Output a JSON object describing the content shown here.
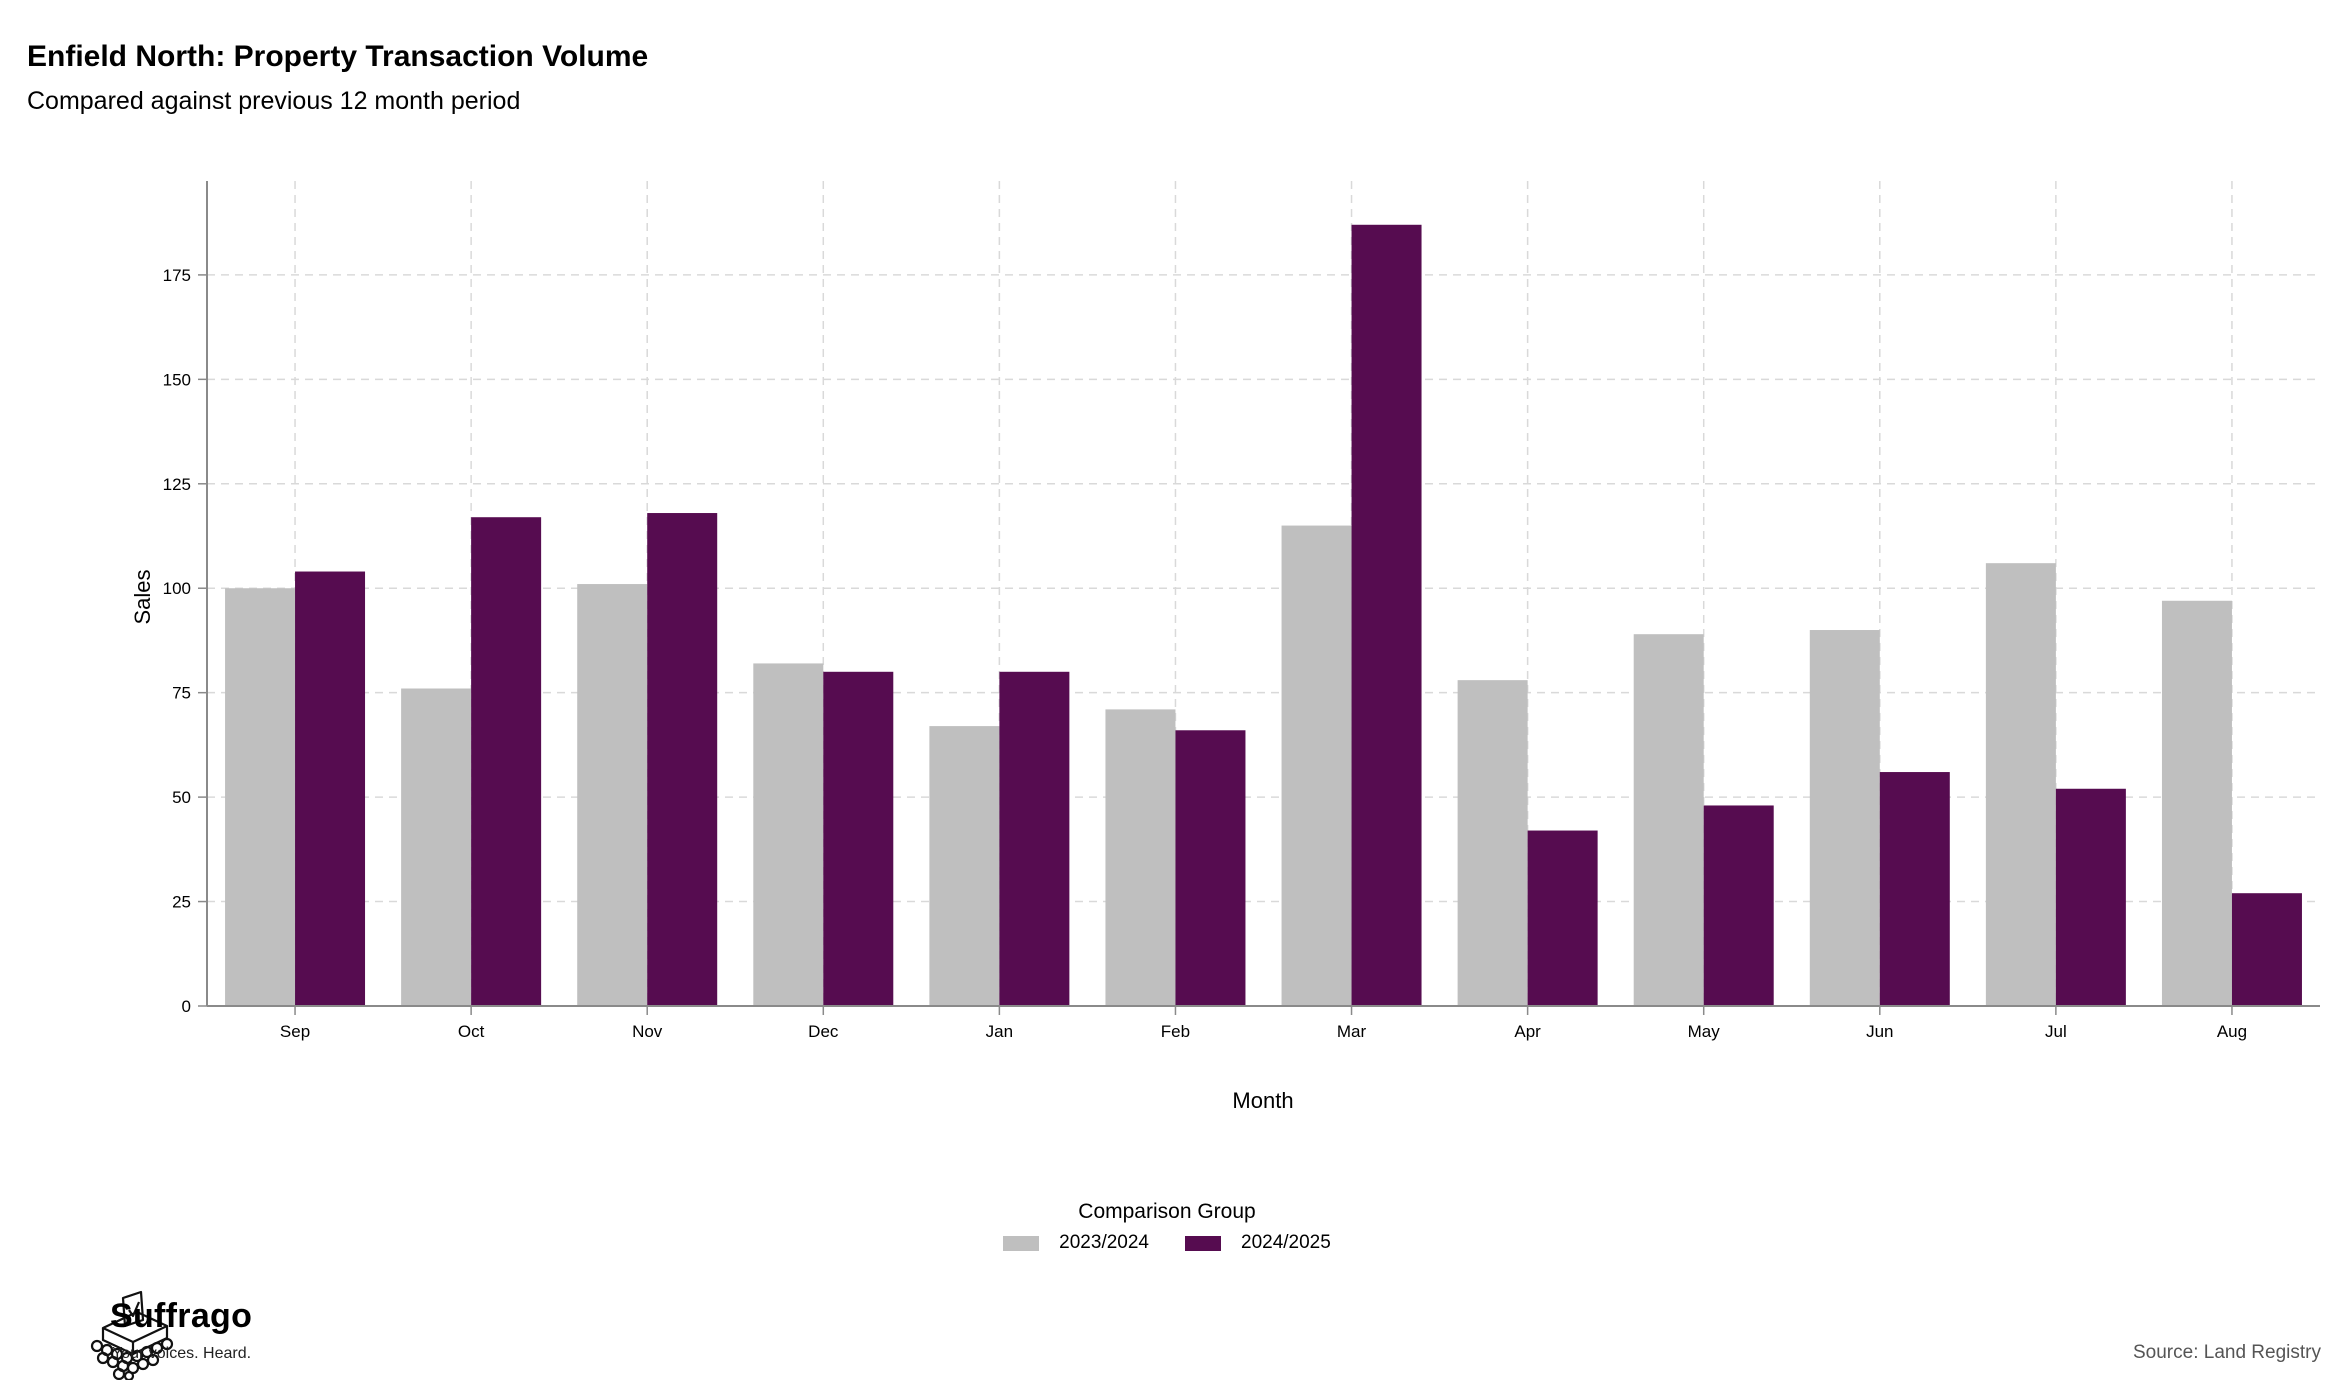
{
  "title": "Enfield North: Property Transaction Volume",
  "subtitle": "Compared against previous 12 month period",
  "source": "Source: Land Registry",
  "brand": {
    "name": "Suffrago",
    "tagline": "Your voices. Heard."
  },
  "legend": {
    "title": "Comparison Group"
  },
  "colors": {
    "2023/2024": "#bfbfbf",
    "2024/2025": "#560c50",
    "grid": "#d9d9d9",
    "axis": "#8a8a8a"
  },
  "chart_data": {
    "type": "bar",
    "xlabel": "Month",
    "ylabel": "Sales",
    "ylim": [
      0,
      197
    ],
    "yticks": [
      0,
      25,
      50,
      75,
      100,
      125,
      150,
      175
    ],
    "grid": true,
    "legend_position": "bottom",
    "categories": [
      "Sep",
      "Oct",
      "Nov",
      "Dec",
      "Jan",
      "Feb",
      "Mar",
      "Apr",
      "May",
      "Jun",
      "Jul",
      "Aug"
    ],
    "series": [
      {
        "name": "2023/2024",
        "values": [
          100,
          76,
          101,
          82,
          67,
          71,
          115,
          78,
          89,
          90,
          106,
          97
        ]
      },
      {
        "name": "2024/2025",
        "values": [
          104,
          117,
          118,
          80,
          80,
          66,
          187,
          42,
          48,
          56,
          52,
          27
        ]
      }
    ]
  }
}
